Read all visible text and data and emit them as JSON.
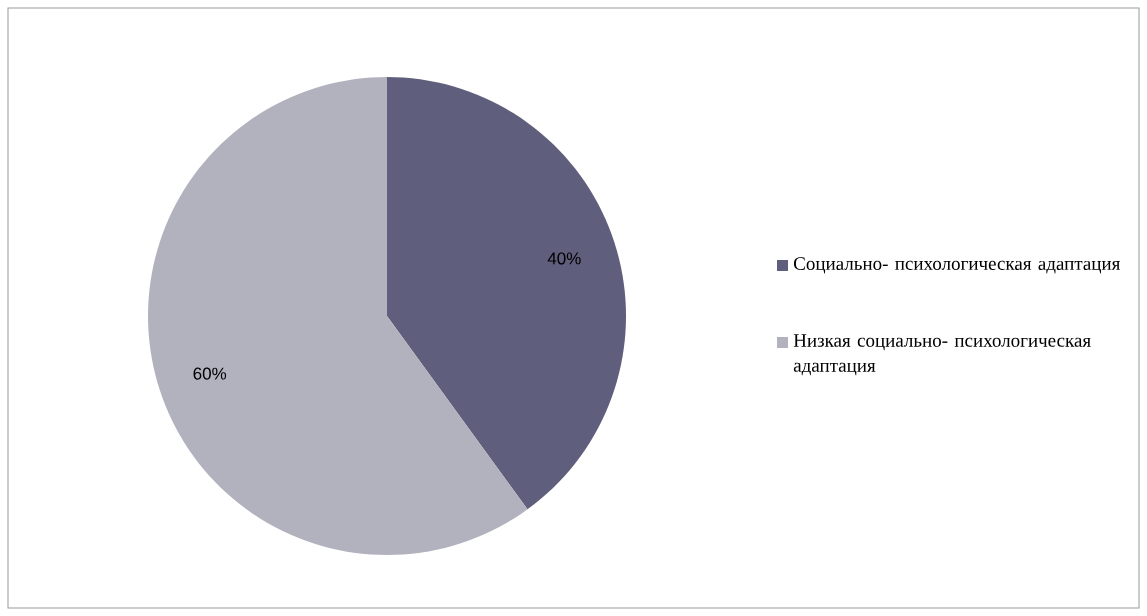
{
  "chart_data": {
    "type": "pie",
    "categories": [
      "Социально- психологическая адаптация",
      "Низкая социально- психологическая адаптация"
    ],
    "values": [
      40,
      60
    ],
    "value_labels": [
      "40%",
      "60%"
    ],
    "colors": [
      "#5f5f7d",
      "#b2b2be"
    ],
    "legend": "right"
  }
}
